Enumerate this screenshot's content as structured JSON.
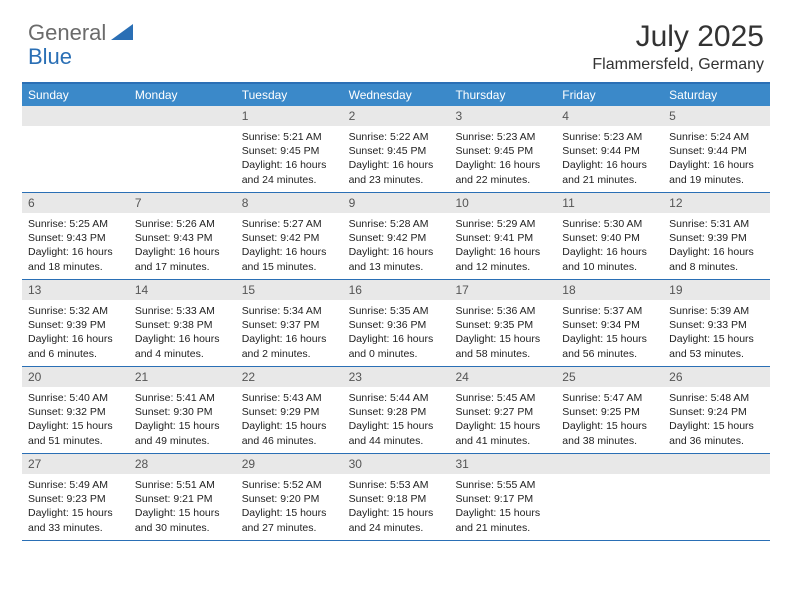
{
  "logo": {
    "gray": "General",
    "blue": "Blue"
  },
  "title": "July 2025",
  "location": "Flammersfeld, Germany",
  "colors": {
    "header_bar": "#3b89c9",
    "border": "#2a6fb5",
    "daynum_bg": "#e8e8e8",
    "logo_gray": "#6b6b6b",
    "logo_blue": "#2a6fb5"
  },
  "dow": [
    "Sunday",
    "Monday",
    "Tuesday",
    "Wednesday",
    "Thursday",
    "Friday",
    "Saturday"
  ],
  "weeks": [
    [
      {
        "n": "",
        "empty": true
      },
      {
        "n": "",
        "empty": true
      },
      {
        "n": "1",
        "sr": "5:21 AM",
        "ss": "9:45 PM",
        "dl": "16 hours and 24 minutes."
      },
      {
        "n": "2",
        "sr": "5:22 AM",
        "ss": "9:45 PM",
        "dl": "16 hours and 23 minutes."
      },
      {
        "n": "3",
        "sr": "5:23 AM",
        "ss": "9:45 PM",
        "dl": "16 hours and 22 minutes."
      },
      {
        "n": "4",
        "sr": "5:23 AM",
        "ss": "9:44 PM",
        "dl": "16 hours and 21 minutes."
      },
      {
        "n": "5",
        "sr": "5:24 AM",
        "ss": "9:44 PM",
        "dl": "16 hours and 19 minutes."
      }
    ],
    [
      {
        "n": "6",
        "sr": "5:25 AM",
        "ss": "9:43 PM",
        "dl": "16 hours and 18 minutes."
      },
      {
        "n": "7",
        "sr": "5:26 AM",
        "ss": "9:43 PM",
        "dl": "16 hours and 17 minutes."
      },
      {
        "n": "8",
        "sr": "5:27 AM",
        "ss": "9:42 PM",
        "dl": "16 hours and 15 minutes."
      },
      {
        "n": "9",
        "sr": "5:28 AM",
        "ss": "9:42 PM",
        "dl": "16 hours and 13 minutes."
      },
      {
        "n": "10",
        "sr": "5:29 AM",
        "ss": "9:41 PM",
        "dl": "16 hours and 12 minutes."
      },
      {
        "n": "11",
        "sr": "5:30 AM",
        "ss": "9:40 PM",
        "dl": "16 hours and 10 minutes."
      },
      {
        "n": "12",
        "sr": "5:31 AM",
        "ss": "9:39 PM",
        "dl": "16 hours and 8 minutes."
      }
    ],
    [
      {
        "n": "13",
        "sr": "5:32 AM",
        "ss": "9:39 PM",
        "dl": "16 hours and 6 minutes."
      },
      {
        "n": "14",
        "sr": "5:33 AM",
        "ss": "9:38 PM",
        "dl": "16 hours and 4 minutes."
      },
      {
        "n": "15",
        "sr": "5:34 AM",
        "ss": "9:37 PM",
        "dl": "16 hours and 2 minutes."
      },
      {
        "n": "16",
        "sr": "5:35 AM",
        "ss": "9:36 PM",
        "dl": "16 hours and 0 minutes."
      },
      {
        "n": "17",
        "sr": "5:36 AM",
        "ss": "9:35 PM",
        "dl": "15 hours and 58 minutes."
      },
      {
        "n": "18",
        "sr": "5:37 AM",
        "ss": "9:34 PM",
        "dl": "15 hours and 56 minutes."
      },
      {
        "n": "19",
        "sr": "5:39 AM",
        "ss": "9:33 PM",
        "dl": "15 hours and 53 minutes."
      }
    ],
    [
      {
        "n": "20",
        "sr": "5:40 AM",
        "ss": "9:32 PM",
        "dl": "15 hours and 51 minutes."
      },
      {
        "n": "21",
        "sr": "5:41 AM",
        "ss": "9:30 PM",
        "dl": "15 hours and 49 minutes."
      },
      {
        "n": "22",
        "sr": "5:43 AM",
        "ss": "9:29 PM",
        "dl": "15 hours and 46 minutes."
      },
      {
        "n": "23",
        "sr": "5:44 AM",
        "ss": "9:28 PM",
        "dl": "15 hours and 44 minutes."
      },
      {
        "n": "24",
        "sr": "5:45 AM",
        "ss": "9:27 PM",
        "dl": "15 hours and 41 minutes."
      },
      {
        "n": "25",
        "sr": "5:47 AM",
        "ss": "9:25 PM",
        "dl": "15 hours and 38 minutes."
      },
      {
        "n": "26",
        "sr": "5:48 AM",
        "ss": "9:24 PM",
        "dl": "15 hours and 36 minutes."
      }
    ],
    [
      {
        "n": "27",
        "sr": "5:49 AM",
        "ss": "9:23 PM",
        "dl": "15 hours and 33 minutes."
      },
      {
        "n": "28",
        "sr": "5:51 AM",
        "ss": "9:21 PM",
        "dl": "15 hours and 30 minutes."
      },
      {
        "n": "29",
        "sr": "5:52 AM",
        "ss": "9:20 PM",
        "dl": "15 hours and 27 minutes."
      },
      {
        "n": "30",
        "sr": "5:53 AM",
        "ss": "9:18 PM",
        "dl": "15 hours and 24 minutes."
      },
      {
        "n": "31",
        "sr": "5:55 AM",
        "ss": "9:17 PM",
        "dl": "15 hours and 21 minutes."
      },
      {
        "n": "",
        "empty": true
      },
      {
        "n": "",
        "empty": true
      }
    ]
  ],
  "labels": {
    "sunrise": "Sunrise:",
    "sunset": "Sunset:",
    "daylight": "Daylight:"
  }
}
